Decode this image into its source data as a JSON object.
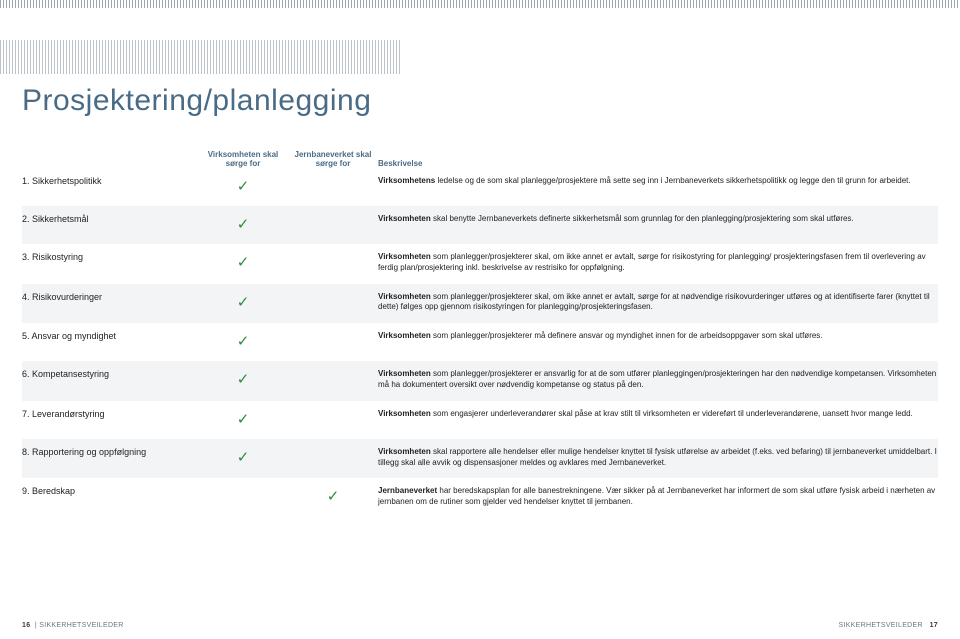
{
  "title": {
    "text": "Prosjektering/planlegging",
    "fontsize": 30,
    "color": "#4a6b86"
  },
  "headers": {
    "col1": "",
    "col2": "Virksomheten skal sørge for",
    "col3": "Jernbaneverket skal sørge for",
    "col4": "Beskrivelse"
  },
  "check_glyph": "✓",
  "check_color": "#2e8c3b",
  "alt_bg": "#f2f4f6",
  "rows": [
    {
      "label": "1. Sikkerhetspolitikk",
      "v": true,
      "j": false,
      "desc_bold": "Virksomhetens",
      "desc_rest": " ledelse og de som skal planlegge/prosjektere må sette seg inn i Jernbaneverkets sikkerhetspolitikk og legge den til grunn for arbeidet."
    },
    {
      "label": "2. Sikkerhetsmål",
      "v": true,
      "j": false,
      "desc_bold": "Virksomheten",
      "desc_rest": " skal benytte Jernbaneverkets definerte sikkerhetsmål som grunnlag for den planlegging/prosjektering som skal utføres."
    },
    {
      "label": "3. Risikostyring",
      "v": true,
      "j": false,
      "desc_bold": "Virksomheten",
      "desc_rest": " som planlegger/prosjekterer skal, om ikke annet er avtalt, sørge for risikostyring for planlegging/ prosjekteringsfasen frem til overlevering av ferdig plan/prosjektering inkl. beskrivelse av restrisiko for oppfølgning."
    },
    {
      "label": "4. Risikovurderinger",
      "v": true,
      "j": false,
      "desc_bold": "Virksomheten",
      "desc_rest": " som planlegger/prosjekterer skal, om ikke annet er avtalt, sørge for at nødvendige risikovurderinger utføres og at identifiserte farer (knyttet til dette) følges opp gjennom risikostyringen for planlegging/prosjekteringsfasen."
    },
    {
      "label": "5. Ansvar og myndighet",
      "v": true,
      "j": false,
      "desc_bold": "Virksomheten",
      "desc_rest": " som planlegger/prosjekterer må definere ansvar og myndighet innen for de arbeidsoppgaver som skal utføres."
    },
    {
      "label": "6. Kompetansestyring",
      "v": true,
      "j": false,
      "desc_bold": "Virksomheten",
      "desc_rest": " som planlegger/prosjekterer er ansvarlig for at de som utfører planleggingen/prosjekteringen har den nødvendige kompetansen. Virksomheten må ha dokumentert oversikt over nødvendig kompetanse og status på den."
    },
    {
      "label": "7. Leverandørstyring",
      "v": true,
      "j": false,
      "desc_bold": "Virksomheten",
      "desc_rest": " som engasjerer underleverandører skal påse at krav stilt til virksomheten er videreført til underleverandørene, uansett hvor mange ledd."
    },
    {
      "label": "8. Rapportering og oppfølgning",
      "v": true,
      "j": false,
      "desc_bold": "Virksomheten",
      "desc_rest": " skal rapportere alle hendelser eller mulige hendelser knyttet til fysisk utførelse av arbeidet (f.eks. ved befaring) til jernbaneverket umiddelbart.  I tillegg skal alle avvik og dispensasjoner meldes og avklares med Jernbaneverket."
    },
    {
      "label": "9. Beredskap",
      "v": false,
      "j": true,
      "desc_bold": "Jernbaneverket",
      "desc_rest": " har beredskapsplan for alle banestrekningene. Vær sikker på at Jernbaneverket har informert de som skal utføre fysisk arbeid i nærheten av jernbanen om de rutiner som gjelder ved hendelser knyttet til jernbanen."
    }
  ],
  "footer": {
    "left_num": "16",
    "left_text": "SIKKERHETSVEILEDER",
    "right_text": "SIKKERHETSVEILEDER",
    "right_num": "17"
  }
}
